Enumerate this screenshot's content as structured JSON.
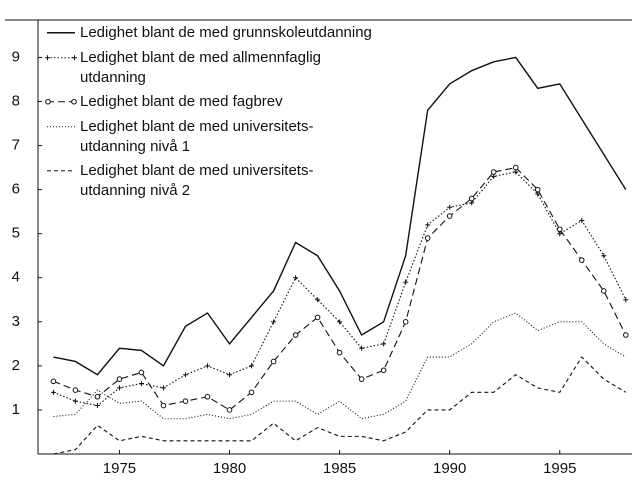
{
  "chart_data": {
    "type": "line",
    "x": [
      1972,
      1973,
      1974,
      1975,
      1976,
      1977,
      1978,
      1979,
      1980,
      1981,
      1982,
      1983,
      1984,
      1985,
      1986,
      1987,
      1988,
      1989,
      1990,
      1991,
      1992,
      1993,
      1994,
      1995,
      1996,
      1997,
      1998
    ],
    "series": [
      {
        "name": "Ledighet blant de med grunnskoleutdanning",
        "color": "#111111",
        "dash": "solid",
        "marker": "none",
        "values": [
          2.2,
          2.1,
          1.8,
          2.4,
          2.35,
          2.0,
          2.9,
          3.2,
          2.5,
          3.1,
          3.7,
          4.8,
          4.5,
          3.7,
          2.7,
          3.0,
          4.5,
          7.8,
          8.4,
          8.7,
          8.9,
          9.0,
          8.3,
          8.4,
          7.6,
          6.8,
          6.0
        ]
      },
      {
        "name": "Ledighet blant de med allmennfaglig\nutdanning",
        "color": "#111111",
        "dash": "dotted",
        "marker": "plus",
        "values": [
          1.4,
          1.2,
          1.1,
          1.5,
          1.6,
          1.5,
          1.8,
          2.0,
          1.8,
          2.0,
          3.0,
          4.0,
          3.5,
          3.0,
          2.4,
          2.5,
          3.9,
          5.2,
          5.6,
          5.7,
          6.3,
          6.4,
          5.9,
          5.0,
          5.3,
          4.5,
          3.5
        ]
      },
      {
        "name": "Ledighet blant de med fagbrev",
        "color": "#111111",
        "dash": "dashed",
        "marker": "circle",
        "values": [
          1.65,
          1.45,
          1.3,
          1.7,
          1.85,
          1.1,
          1.2,
          1.3,
          1.0,
          1.4,
          2.1,
          2.7,
          3.1,
          2.3,
          1.7,
          1.9,
          3.0,
          4.9,
          5.4,
          5.8,
          6.4,
          6.5,
          6.0,
          5.1,
          4.4,
          3.7,
          2.7
        ]
      },
      {
        "name": "Ledighet blant de med universitets-\nutdanning nivå 1",
        "color": "#111111",
        "dash": "fine-dotted",
        "marker": "none",
        "values": [
          0.85,
          0.9,
          1.45,
          1.15,
          1.2,
          0.8,
          0.8,
          0.9,
          0.8,
          0.9,
          1.2,
          1.2,
          0.9,
          1.2,
          0.8,
          0.9,
          1.2,
          2.2,
          2.2,
          2.5,
          3.0,
          3.2,
          2.8,
          3.0,
          3.0,
          2.5,
          2.2
        ]
      },
      {
        "name": "Ledighet blant de med universitets-\nutdanning nivå 2",
        "color": "#111111",
        "dash": "short-dashed",
        "marker": "none",
        "values": [
          0.0,
          0.1,
          0.65,
          0.3,
          0.4,
          0.3,
          0.3,
          0.3,
          0.3,
          0.3,
          0.7,
          0.3,
          0.6,
          0.4,
          0.4,
          0.3,
          0.5,
          1.0,
          1.0,
          1.4,
          1.4,
          1.8,
          1.5,
          1.4,
          2.2,
          1.7,
          1.4
        ]
      }
    ],
    "xlim": [
      1971.3,
      1998.1
    ],
    "xticks": [
      1975,
      1980,
      1985,
      1990,
      1995
    ],
    "ylim": [
      0,
      9.85
    ],
    "yticks": [
      1,
      2,
      3,
      4,
      5,
      6,
      7,
      8,
      9
    ],
    "legend": "top-left"
  }
}
